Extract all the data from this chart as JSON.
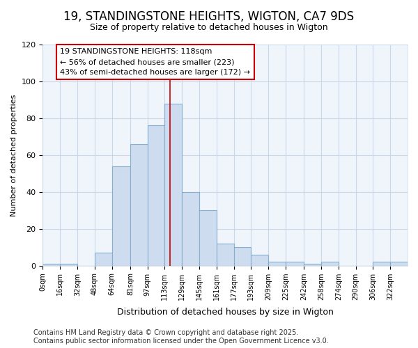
{
  "title": "19, STANDINGSTONE HEIGHTS, WIGTON, CA7 9DS",
  "subtitle": "Size of property relative to detached houses in Wigton",
  "xlabel": "Distribution of detached houses by size in Wigton",
  "ylabel": "Number of detached properties",
  "footer_line1": "Contains HM Land Registry data © Crown copyright and database right 2025.",
  "footer_line2": "Contains public sector information licensed under the Open Government Licence v3.0.",
  "categories": [
    "0sqm",
    "16sqm",
    "32sqm",
    "48sqm",
    "64sqm",
    "81sqm",
    "97sqm",
    "113sqm",
    "129sqm",
    "145sqm",
    "161sqm",
    "177sqm",
    "193sqm",
    "209sqm",
    "225sqm",
    "242sqm",
    "258sqm",
    "274sqm",
    "290sqm",
    "306sqm",
    "322sqm"
  ],
  "bin_edges": [
    0,
    16,
    32,
    48,
    64,
    81,
    97,
    113,
    129,
    145,
    161,
    177,
    193,
    209,
    225,
    242,
    258,
    274,
    290,
    306,
    322,
    338
  ],
  "bar_heights": [
    1,
    1,
    0,
    7,
    54,
    66,
    76,
    88,
    40,
    30,
    12,
    10,
    6,
    2,
    2,
    1,
    2,
    0,
    0,
    2,
    2
  ],
  "bar_color": "#cddcee",
  "bar_edge_color": "#85aed0",
  "grid_color": "#c8d8e8",
  "bg_color": "#ffffff",
  "plot_bg_color": "#f0f5fb",
  "vline_color": "#cc0000",
  "vline_x": 118,
  "annotation_line1": "19 STANDINGSTONE HEIGHTS: 118sqm",
  "annotation_line2": "← 56% of detached houses are smaller (223)",
  "annotation_line3": "43% of semi-detached houses are larger (172) →",
  "ylim": [
    0,
    120
  ],
  "yticks": [
    0,
    20,
    40,
    60,
    80,
    100,
    120
  ],
  "title_fontsize": 12,
  "subtitle_fontsize": 9,
  "tick_fontsize": 8,
  "ylabel_fontsize": 8,
  "xlabel_fontsize": 9,
  "footer_fontsize": 7
}
